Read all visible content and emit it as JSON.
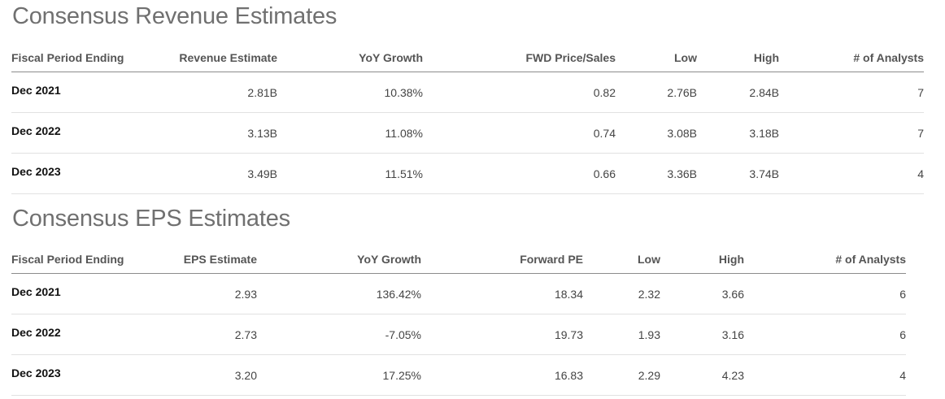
{
  "revenue": {
    "title": "Consensus Revenue Estimates",
    "columns": [
      "Fiscal Period Ending",
      "Revenue Estimate",
      "YoY Growth",
      "FWD Price/Sales",
      "Low",
      "High",
      "# of Analysts"
    ],
    "rows": [
      [
        "Dec 2021",
        "2.81B",
        "10.38%",
        "0.82",
        "2.76B",
        "2.84B",
        "7"
      ],
      [
        "Dec 2022",
        "3.13B",
        "11.08%",
        "0.74",
        "3.08B",
        "3.18B",
        "7"
      ],
      [
        "Dec 2023",
        "3.49B",
        "11.51%",
        "0.66",
        "3.36B",
        "3.74B",
        "4"
      ]
    ]
  },
  "eps": {
    "title": "Consensus EPS Estimates",
    "columns": [
      "Fiscal Period Ending",
      "EPS Estimate",
      "YoY Growth",
      "Forward PE",
      "Low",
      "High",
      "# of Analysts"
    ],
    "rows": [
      [
        "Dec 2021",
        "2.93",
        "136.42%",
        "18.34",
        "2.32",
        "3.66",
        "6"
      ],
      [
        "Dec 2022",
        "2.73",
        "-7.05%",
        "19.73",
        "1.93",
        "3.16",
        "6"
      ],
      [
        "Dec 2023",
        "3.20",
        "17.25%",
        "16.83",
        "2.29",
        "4.23",
        "4"
      ]
    ]
  }
}
